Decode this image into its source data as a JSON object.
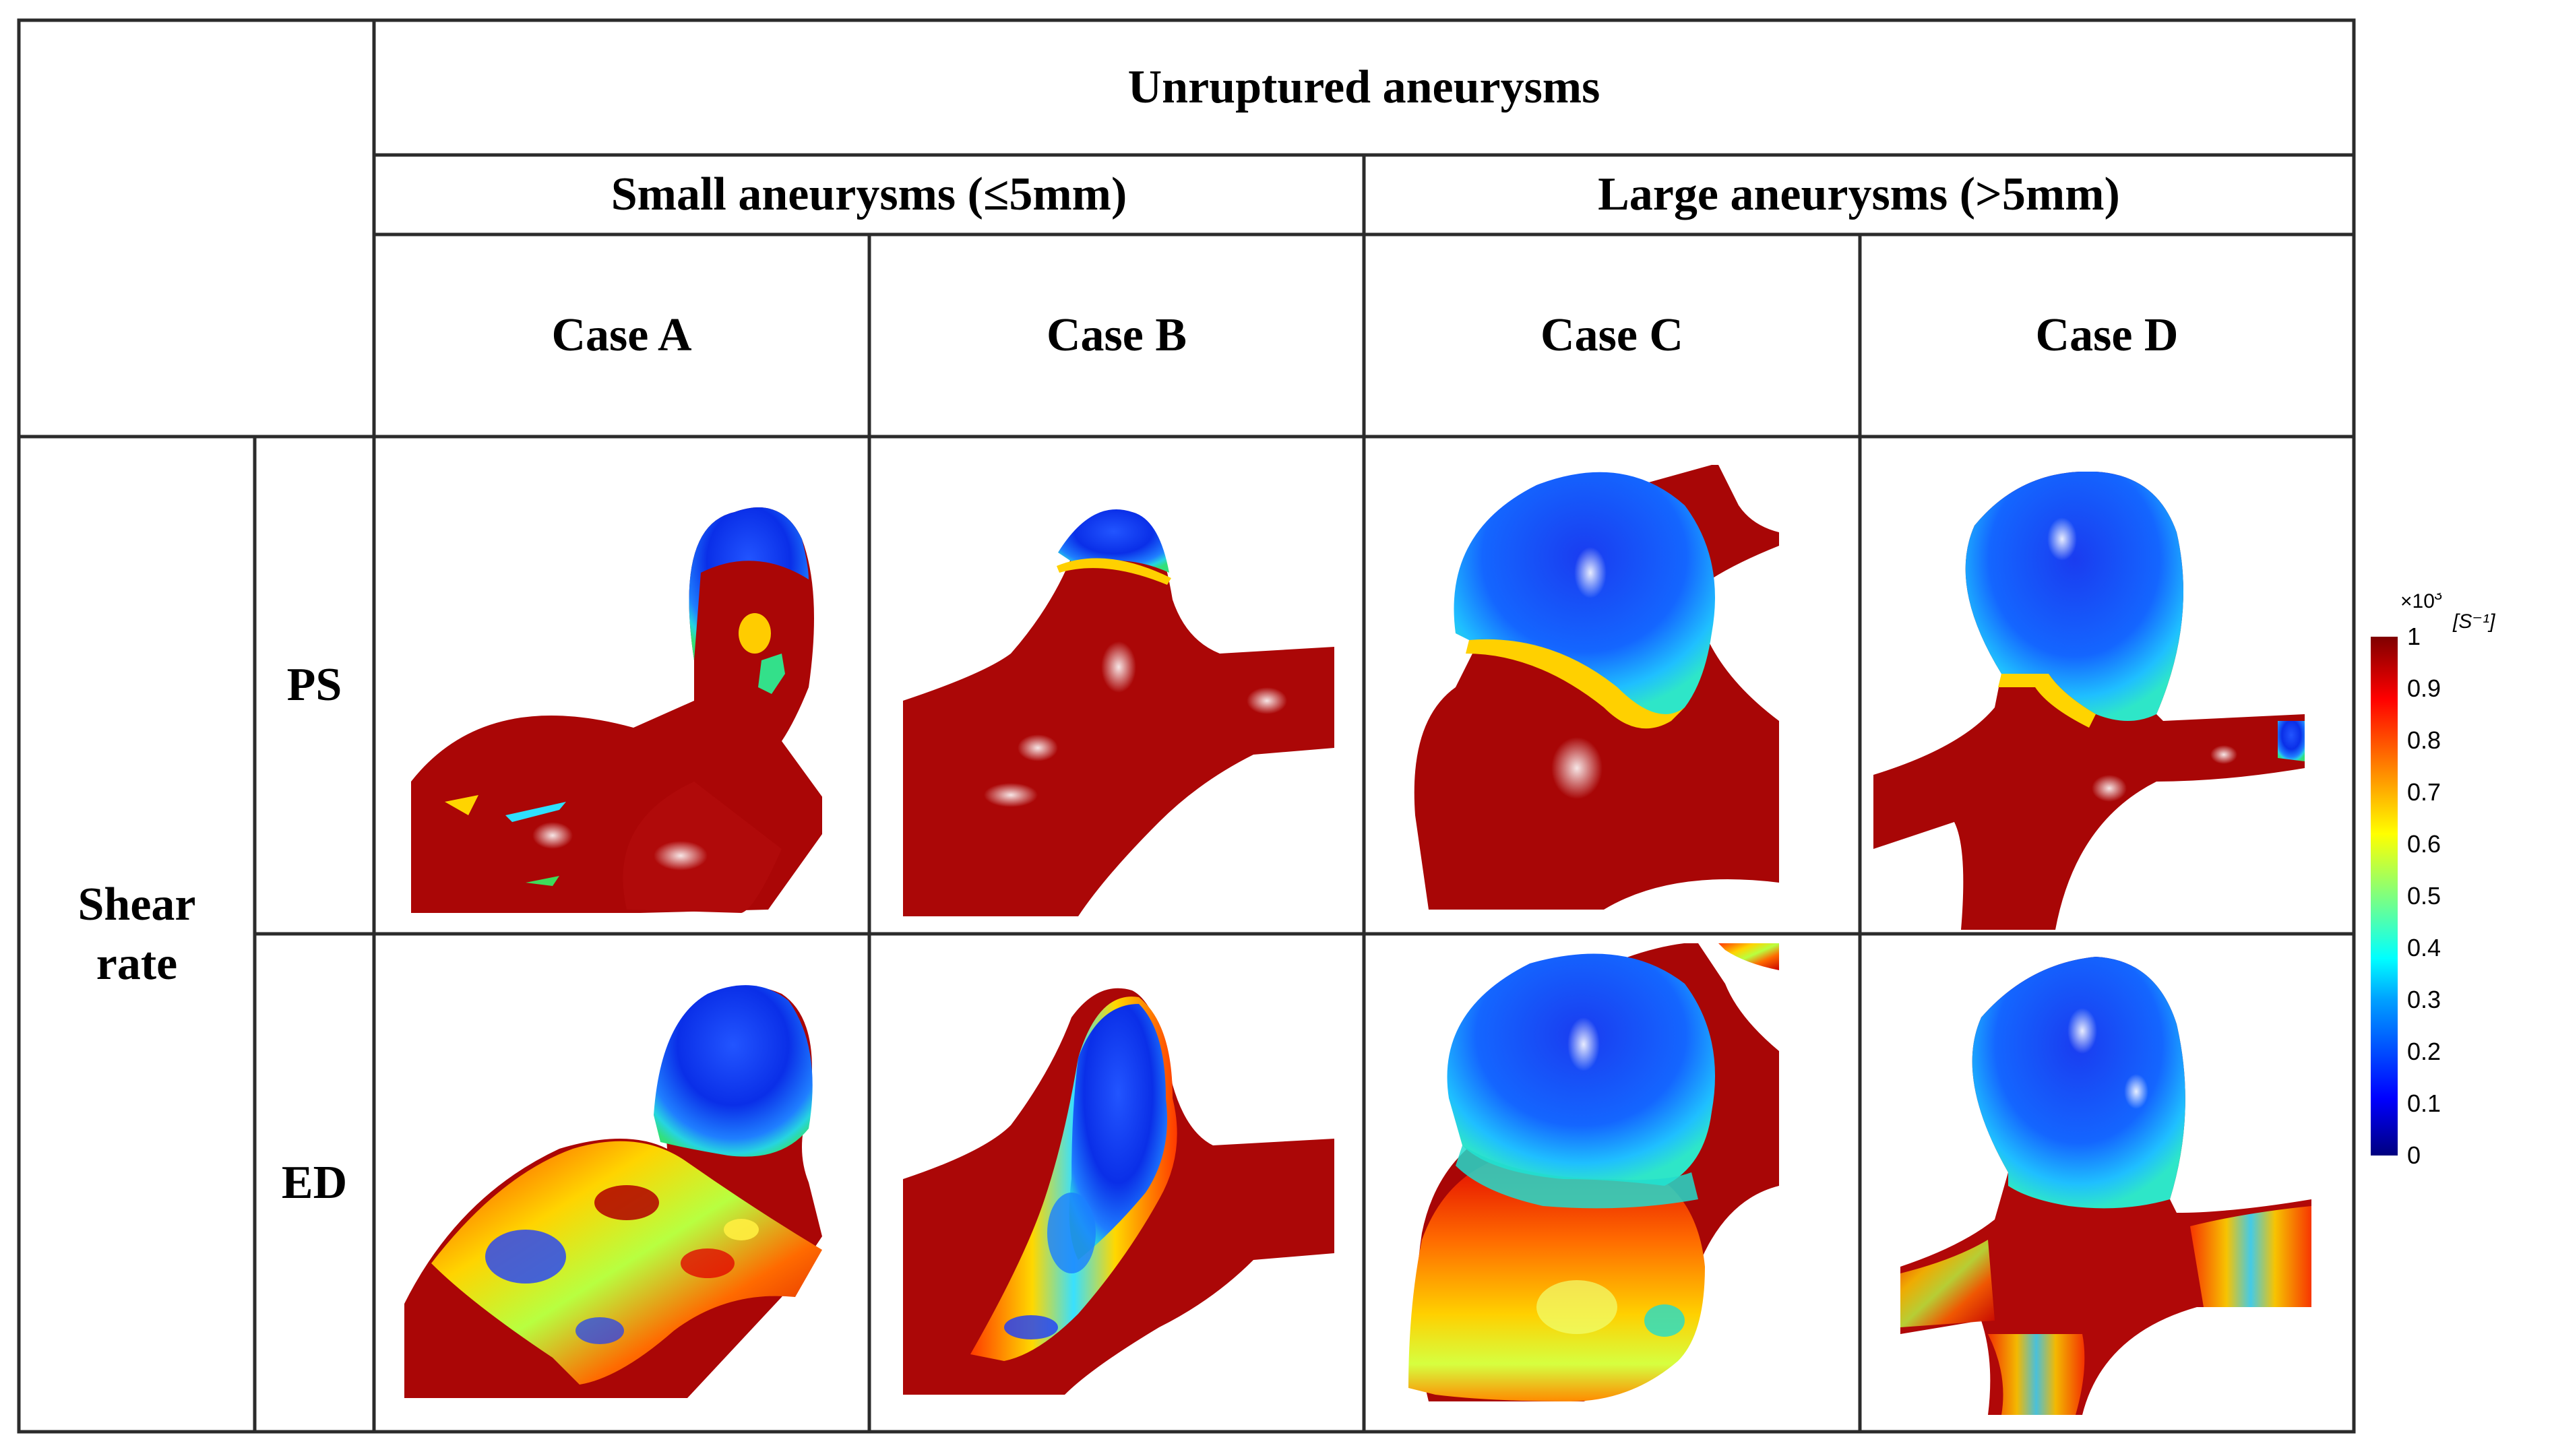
{
  "table": {
    "title": "Unruptured aneurysms",
    "groups": [
      "Small aneurysms (≤5mm)",
      "Large aneurysms (>5mm)"
    ],
    "cases": [
      "Case A",
      "Case B",
      "Case C",
      "Case D"
    ],
    "row_group": "Shear\nrate",
    "rows": [
      "PS",
      "ED"
    ]
  },
  "colorbar": {
    "multiplier": "×10",
    "exponent": "3",
    "unit": "[S⁻¹]",
    "ticks": [
      "1",
      "0.9",
      "0.8",
      "0.7",
      "0.6",
      "0.5",
      "0.4",
      "0.3",
      "0.2",
      "0.1",
      "0"
    ],
    "range": [
      0,
      1
    ],
    "colors": [
      "#00007f",
      "#0000ff",
      "#00a0ff",
      "#00ffff",
      "#7fff7f",
      "#ffff00",
      "#ff8000",
      "#ff0000",
      "#7f0000"
    ]
  }
}
